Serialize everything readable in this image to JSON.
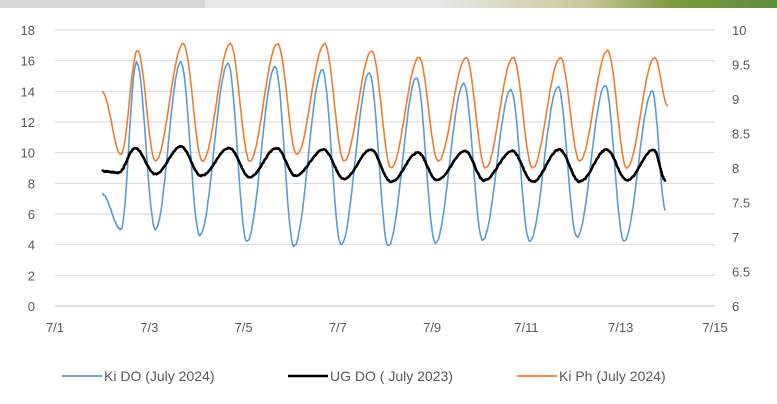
{
  "chart_data": {
    "type": "line",
    "title": "",
    "xlabel": "",
    "ylabel": "",
    "xlim": [
      1,
      15
    ],
    "ylim": [
      0,
      18
    ],
    "y2lim": [
      6,
      10
    ],
    "x_ticks": [
      "7/1",
      "7/3",
      "7/5",
      "7/7",
      "7/9",
      "7/11",
      "7/13",
      "7/15"
    ],
    "y_ticks": [
      "0",
      "2",
      "4",
      "6",
      "8",
      "10",
      "12",
      "14",
      "16",
      "18"
    ],
    "y2_ticks": [
      "6",
      "6.5",
      "7",
      "7.5",
      "8",
      "8.5",
      "9",
      "9.5",
      "10"
    ],
    "grid": true,
    "legend_position": "bottom",
    "series": [
      {
        "name": "Ki DO (July 2024)",
        "axis": "left",
        "color": "#5b9bd5",
        "x": [
          2.0,
          2.4,
          2.73,
          3.13,
          3.67,
          4.07,
          4.67,
          5.07,
          5.67,
          6.07,
          6.67,
          7.07,
          7.67,
          8.07,
          8.67,
          9.07,
          9.67,
          10.07,
          10.67,
          11.07,
          11.67,
          12.07,
          12.67,
          13.07,
          13.67,
          13.95
        ],
        "y": [
          7.3,
          5.0,
          15.9,
          5.0,
          15.9,
          4.6,
          15.8,
          4.2,
          15.6,
          3.9,
          15.4,
          4.0,
          15.2,
          3.9,
          14.9,
          4.1,
          14.5,
          4.3,
          14.1,
          4.2,
          14.3,
          4.5,
          14.4,
          4.2,
          14.0,
          6.3
        ]
      },
      {
        "name": "UG DO ( July 2023)",
        "axis": "left",
        "color": "#000000",
        "x": [
          2.0,
          2.35,
          2.7,
          3.13,
          3.67,
          4.1,
          4.7,
          5.13,
          5.7,
          6.1,
          6.7,
          7.13,
          7.7,
          8.13,
          8.7,
          9.1,
          9.7,
          10.1,
          10.7,
          11.13,
          11.7,
          12.13,
          12.7,
          13.13,
          13.7,
          13.95
        ],
        "y": [
          8.8,
          8.7,
          10.3,
          8.6,
          10.4,
          8.5,
          10.3,
          8.4,
          10.3,
          8.5,
          10.2,
          8.3,
          10.2,
          8.1,
          10.0,
          8.2,
          10.1,
          8.2,
          10.1,
          8.1,
          10.2,
          8.1,
          10.2,
          8.2,
          10.2,
          8.2
        ]
      },
      {
        "name": "Ki Ph (July 2024)",
        "axis": "right",
        "color": "#ed7d31",
        "x": [
          2.0,
          2.4,
          2.75,
          3.13,
          3.72,
          4.13,
          4.72,
          5.13,
          5.72,
          6.13,
          6.72,
          7.13,
          7.72,
          8.13,
          8.72,
          9.13,
          9.72,
          10.13,
          10.72,
          11.13,
          11.72,
          12.13,
          12.72,
          13.13,
          13.72,
          14.0
        ],
        "y": [
          9.1,
          8.2,
          9.7,
          8.1,
          9.8,
          8.1,
          9.8,
          8.1,
          9.8,
          8.2,
          9.8,
          8.1,
          9.7,
          8.0,
          9.6,
          8.1,
          9.6,
          8.0,
          9.6,
          8.0,
          9.6,
          8.1,
          9.7,
          8.0,
          9.6,
          8.9
        ]
      }
    ]
  }
}
